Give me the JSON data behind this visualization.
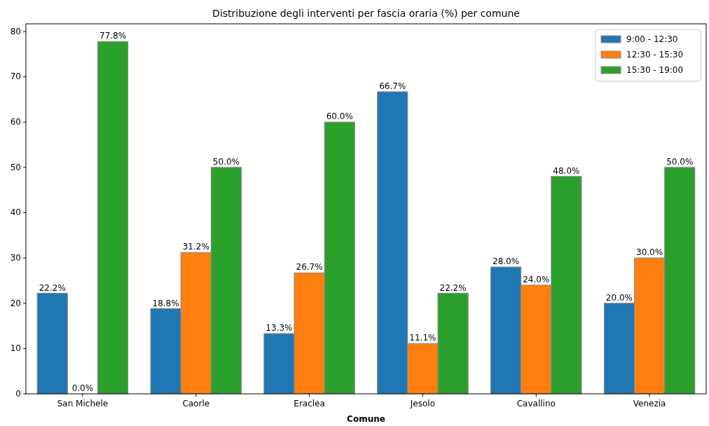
{
  "chart_data": {
    "type": "bar",
    "title": "Distribuzione degli interventi per fascia oraria (%) per comune",
    "xlabel": "Comune",
    "categories": [
      "San Michele",
      "Caorle",
      "Eraclea",
      "Jesolo",
      "Cavallino",
      "Venezia"
    ],
    "series": [
      {
        "name": "9:00 - 12:30",
        "color": "#1f77b4",
        "values": [
          22.2,
          18.8,
          13.3,
          66.7,
          28.0,
          20.0
        ],
        "value_labels": [
          "22.2%",
          "18.8%",
          "13.3%",
          "66.7%",
          "28.0%",
          "20.0%"
        ]
      },
      {
        "name": "12:30 - 15:30",
        "color": "#ff7f0e",
        "values": [
          0.0,
          31.2,
          26.7,
          11.1,
          24.0,
          30.0
        ],
        "value_labels": [
          "0.0%",
          "31.2%",
          "26.7%",
          "11.1%",
          "24.0%",
          "30.0%"
        ]
      },
      {
        "name": "15:30 - 19:00",
        "color": "#2ca02c",
        "values": [
          77.8,
          50.0,
          60.0,
          22.2,
          48.0,
          50.0
        ],
        "value_labels": [
          "77.8%",
          "50.0%",
          "60.0%",
          "22.2%",
          "48.0%",
          "50.0%"
        ]
      }
    ],
    "ylim": [
      0,
      81.7
    ],
    "yticks": [
      0,
      10,
      20,
      30,
      40,
      50,
      60,
      70,
      80
    ],
    "legend": "top right"
  }
}
